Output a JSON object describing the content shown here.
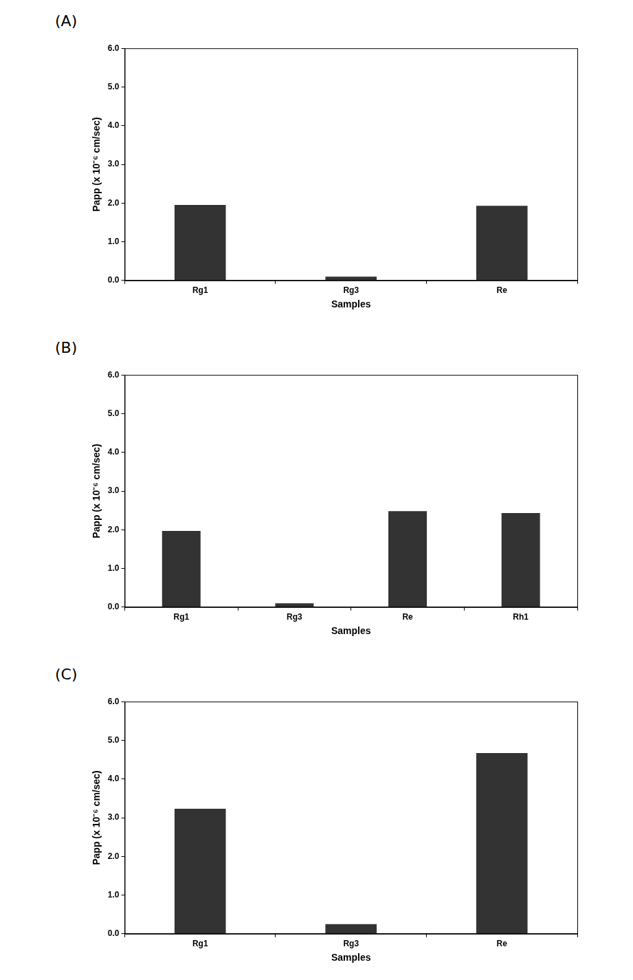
{
  "chart_data": [
    {
      "type": "bar",
      "title": "(A)",
      "x_label": "Samples",
      "y_label": "Papp (x 10⁻⁶ cm/sec)",
      "categories": [
        "Rg1",
        "Rg3",
        "Re"
      ],
      "values": [
        1.95,
        0.1,
        1.93
      ],
      "color": "#333333",
      "ylim": [
        0,
        6
      ],
      "yticks": [
        {
          "value": 0,
          "label": "0.0"
        },
        {
          "value": 1,
          "label": "1.0"
        },
        {
          "value": 2,
          "label": "2.0"
        },
        {
          "value": 3,
          "label": "3.0"
        },
        {
          "value": 4,
          "label": "4.0"
        },
        {
          "value": 5,
          "label": "5.0"
        },
        {
          "value": 6,
          "label": "6.0"
        }
      ],
      "grid": false
    },
    {
      "type": "bar",
      "title": "(B)",
      "x_label": "Samples",
      "y_label": "Papp (x 10⁻⁶ cm/sec)",
      "categories": [
        "Rg1",
        "Rg3",
        "Re",
        "Rh1"
      ],
      "values": [
        1.97,
        0.1,
        2.48,
        2.43
      ],
      "color": "#333333",
      "ylim": [
        0,
        6
      ],
      "yticks": [
        {
          "value": 0,
          "label": "0.0"
        },
        {
          "value": 1,
          "label": "1.0"
        },
        {
          "value": 2,
          "label": "2.0"
        },
        {
          "value": 3,
          "label": "3.0"
        },
        {
          "value": 4,
          "label": "4.0"
        },
        {
          "value": 5,
          "label": "5.0"
        },
        {
          "value": 6,
          "label": "6.0"
        }
      ],
      "grid": false
    },
    {
      "type": "bar",
      "title": "(C)",
      "x_label": "Samples",
      "y_label": "Papp (x 10⁻⁶ cm/sec)",
      "categories": [
        "Rg1",
        "Rg3",
        "Re"
      ],
      "values": [
        3.23,
        0.25,
        4.67
      ],
      "color": "#333333",
      "ylim": [
        0,
        6
      ],
      "yticks": [
        {
          "value": 0,
          "label": "0.0"
        },
        {
          "value": 1,
          "label": "1.0"
        },
        {
          "value": 2,
          "label": "2.0"
        },
        {
          "value": 3,
          "label": "3.0"
        },
        {
          "value": 4,
          "label": "4.0"
        },
        {
          "value": 5,
          "label": "5.0"
        },
        {
          "value": 6,
          "label": "6.0"
        }
      ],
      "grid": false
    }
  ]
}
